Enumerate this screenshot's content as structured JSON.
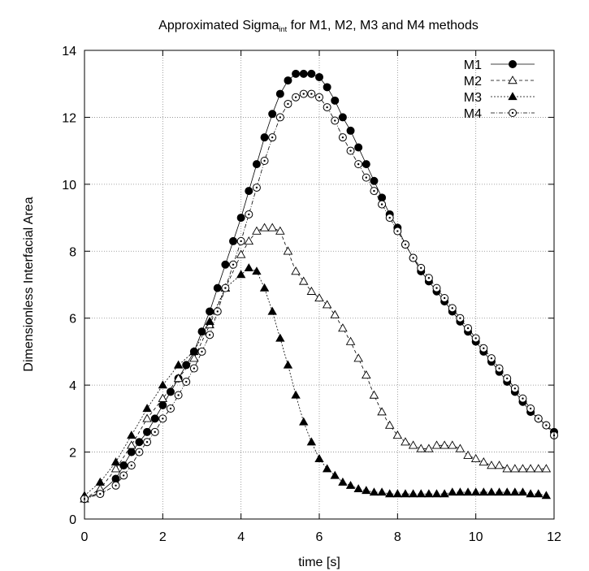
{
  "chart_data": {
    "type": "line",
    "title": "Approximated Sigma",
    "title_subscript": "int",
    "title_suffix": " for M1, M2, M3 and M4 methods",
    "xlabel": "time [s]",
    "ylabel": "Dimensionless Interfacial Area",
    "xlim": [
      0,
      12
    ],
    "ylim": [
      0,
      14
    ],
    "xticks": [
      0,
      2,
      4,
      6,
      8,
      10,
      12
    ],
    "yticks": [
      0,
      2,
      4,
      6,
      8,
      10,
      12,
      14
    ],
    "grid": true,
    "legend_position": "top-right",
    "series": [
      {
        "name": "M1",
        "marker": "filled-circle",
        "line": "solid",
        "x": [
          0.0,
          0.4,
          0.8,
          1.0,
          1.2,
          1.4,
          1.6,
          1.8,
          2.0,
          2.2,
          2.4,
          2.6,
          2.8,
          3.0,
          3.2,
          3.4,
          3.6,
          3.8,
          4.0,
          4.2,
          4.4,
          4.6,
          4.8,
          5.0,
          5.2,
          5.4,
          5.6,
          5.8,
          6.0,
          6.2,
          6.4,
          6.6,
          6.8,
          7.0,
          7.2,
          7.4,
          7.6,
          7.8,
          8.0,
          8.2,
          8.4,
          8.6,
          8.8,
          9.0,
          9.2,
          9.4,
          9.6,
          9.8,
          10.0,
          10.2,
          10.4,
          10.6,
          10.8,
          11.0,
          11.2,
          11.4,
          11.6,
          11.8,
          12.0
        ],
        "y": [
          0.6,
          0.8,
          1.2,
          1.6,
          2.0,
          2.3,
          2.6,
          3.0,
          3.4,
          3.8,
          4.2,
          4.6,
          5.0,
          5.6,
          6.2,
          6.9,
          7.6,
          8.3,
          9.0,
          9.8,
          10.6,
          11.4,
          12.1,
          12.7,
          13.1,
          13.3,
          13.3,
          13.3,
          13.2,
          12.9,
          12.5,
          12.0,
          11.6,
          11.1,
          10.6,
          10.1,
          9.6,
          9.1,
          8.7,
          8.2,
          7.8,
          7.4,
          7.1,
          6.8,
          6.5,
          6.2,
          5.9,
          5.6,
          5.3,
          5.0,
          4.7,
          4.4,
          4.1,
          3.8,
          3.5,
          3.2,
          3.0,
          2.8,
          2.6
        ]
      },
      {
        "name": "M2",
        "marker": "open-triangle",
        "line": "dashed",
        "x": [
          0.0,
          0.4,
          0.8,
          1.2,
          1.6,
          2.0,
          2.4,
          2.8,
          3.2,
          3.6,
          4.0,
          4.2,
          4.4,
          4.6,
          4.8,
          5.0,
          5.2,
          5.4,
          5.6,
          5.8,
          6.0,
          6.2,
          6.4,
          6.6,
          6.8,
          7.0,
          7.2,
          7.4,
          7.6,
          7.8,
          8.0,
          8.2,
          8.4,
          8.6,
          8.8,
          9.0,
          9.2,
          9.4,
          9.6,
          9.8,
          10.0,
          10.2,
          10.4,
          10.6,
          10.8,
          11.0,
          11.2,
          11.4,
          11.6,
          11.8
        ],
        "y": [
          0.6,
          0.9,
          1.5,
          2.2,
          3.0,
          3.6,
          4.2,
          4.8,
          5.8,
          6.9,
          7.9,
          8.3,
          8.6,
          8.7,
          8.7,
          8.6,
          8.0,
          7.4,
          7.1,
          6.8,
          6.6,
          6.4,
          6.1,
          5.7,
          5.3,
          4.8,
          4.3,
          3.7,
          3.2,
          2.8,
          2.5,
          2.3,
          2.2,
          2.1,
          2.1,
          2.2,
          2.2,
          2.2,
          2.1,
          1.9,
          1.8,
          1.7,
          1.6,
          1.6,
          1.5,
          1.5,
          1.5,
          1.5,
          1.5,
          1.5
        ]
      },
      {
        "name": "M3",
        "marker": "filled-triangle",
        "line": "dotted",
        "x": [
          0.0,
          0.4,
          0.8,
          1.2,
          1.6,
          2.0,
          2.4,
          2.8,
          3.2,
          3.6,
          4.0,
          4.2,
          4.4,
          4.6,
          4.8,
          5.0,
          5.2,
          5.4,
          5.6,
          5.8,
          6.0,
          6.2,
          6.4,
          6.6,
          6.8,
          7.0,
          7.2,
          7.4,
          7.6,
          7.8,
          8.0,
          8.2,
          8.4,
          8.6,
          8.8,
          9.0,
          9.2,
          9.4,
          9.6,
          9.8,
          10.0,
          10.2,
          10.4,
          10.6,
          10.8,
          11.0,
          11.2,
          11.4,
          11.6,
          11.8
        ],
        "y": [
          0.7,
          1.1,
          1.7,
          2.5,
          3.3,
          4.0,
          4.6,
          5.0,
          5.9,
          6.9,
          7.3,
          7.5,
          7.4,
          6.9,
          6.2,
          5.4,
          4.6,
          3.7,
          2.9,
          2.3,
          1.8,
          1.5,
          1.3,
          1.1,
          1.0,
          0.9,
          0.85,
          0.8,
          0.8,
          0.75,
          0.75,
          0.75,
          0.75,
          0.75,
          0.75,
          0.75,
          0.75,
          0.8,
          0.8,
          0.8,
          0.8,
          0.8,
          0.8,
          0.8,
          0.8,
          0.8,
          0.8,
          0.75,
          0.75,
          0.7
        ]
      },
      {
        "name": "M4",
        "marker": "open-circle",
        "line": "dash-dot",
        "x": [
          0.0,
          0.4,
          0.8,
          1.0,
          1.2,
          1.4,
          1.6,
          1.8,
          2.0,
          2.2,
          2.4,
          2.6,
          2.8,
          3.0,
          3.2,
          3.4,
          3.6,
          3.8,
          4.0,
          4.2,
          4.4,
          4.6,
          4.8,
          5.0,
          5.2,
          5.4,
          5.6,
          5.8,
          6.0,
          6.2,
          6.4,
          6.6,
          6.8,
          7.0,
          7.2,
          7.4,
          7.6,
          7.8,
          8.0,
          8.2,
          8.4,
          8.6,
          8.8,
          9.0,
          9.2,
          9.4,
          9.6,
          9.8,
          10.0,
          10.2,
          10.4,
          10.6,
          10.8,
          11.0,
          11.2,
          11.4,
          11.6,
          11.8,
          12.0
        ],
        "y": [
          0.6,
          0.75,
          1.0,
          1.3,
          1.6,
          2.0,
          2.3,
          2.6,
          3.0,
          3.3,
          3.7,
          4.1,
          4.5,
          5.0,
          5.5,
          6.2,
          6.9,
          7.6,
          8.3,
          9.1,
          9.9,
          10.7,
          11.4,
          12.0,
          12.4,
          12.6,
          12.7,
          12.7,
          12.6,
          12.3,
          11.9,
          11.4,
          11.0,
          10.6,
          10.2,
          9.8,
          9.4,
          9.0,
          8.6,
          8.2,
          7.8,
          7.5,
          7.2,
          6.9,
          6.6,
          6.3,
          6.0,
          5.7,
          5.4,
          5.1,
          4.8,
          4.5,
          4.2,
          3.9,
          3.6,
          3.3,
          3.0,
          2.8,
          2.5
        ]
      }
    ]
  }
}
